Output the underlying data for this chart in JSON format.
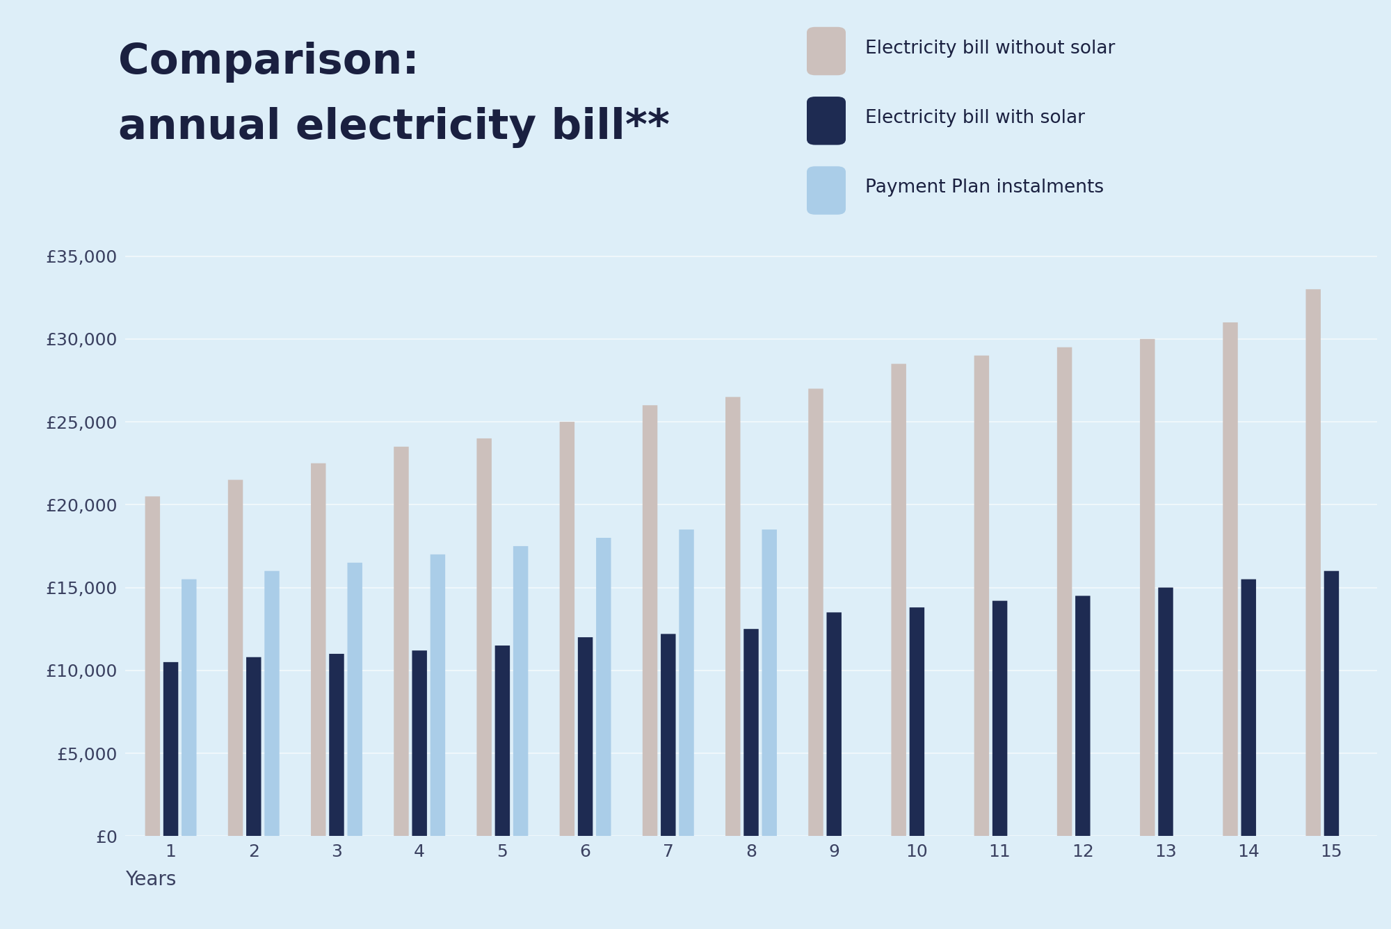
{
  "title_line1": "Comparison:",
  "title_line2": "annual electricity bill**",
  "xlabel": "Years",
  "background_color": "#ddeef8",
  "years": [
    1,
    2,
    3,
    4,
    5,
    6,
    7,
    8,
    9,
    10,
    11,
    12,
    13,
    14,
    15
  ],
  "without_solar": [
    20500,
    21500,
    22500,
    23500,
    24000,
    25000,
    26000,
    26500,
    27000,
    28500,
    29000,
    29500,
    30000,
    31000,
    33000
  ],
  "with_solar": [
    10500,
    10800,
    11000,
    11200,
    11500,
    12000,
    12200,
    12500,
    13500,
    13800,
    14200,
    14500,
    15000,
    15500,
    16000
  ],
  "payment_plan": [
    15500,
    16000,
    16500,
    17000,
    17500,
    18000,
    18500,
    18500,
    0,
    0,
    0,
    0,
    0,
    0,
    0
  ],
  "color_without_solar": "#ccc0bc",
  "color_with_solar": "#1e2b52",
  "color_payment_plan": "#aacde8",
  "legend_labels": [
    "Electricity bill without solar",
    "Electricity bill with solar",
    "Payment Plan instalments"
  ],
  "ylim": [
    0,
    37000
  ],
  "yticks": [
    0,
    5000,
    10000,
    15000,
    20000,
    25000,
    30000,
    35000
  ],
  "ytick_labels": [
    "£0",
    "£5,000",
    "£10,000",
    "£15,000",
    "£20,000",
    "£25,000",
    "£30,000",
    "£35,000"
  ],
  "title_color": "#1a2040",
  "tick_color": "#3a4060",
  "title_fontsize": 44,
  "tick_fontsize": 18,
  "xlabel_fontsize": 20,
  "legend_fontsize": 19
}
